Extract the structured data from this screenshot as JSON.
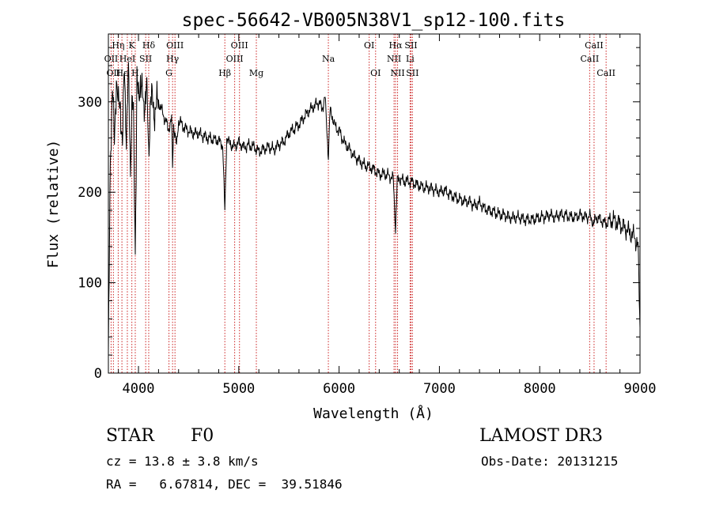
{
  "chart_data": {
    "type": "line",
    "title": "spec-56642-VB005N38V1_sp12-100.fits",
    "xlabel": "Wavelength (Å)",
    "ylabel": "Flux (relative)",
    "xlim": [
      3700,
      9000
    ],
    "ylim": [
      0,
      375
    ],
    "x_ticks": [
      4000,
      5000,
      6000,
      7000,
      8000,
      9000
    ],
    "y_ticks": [
      0,
      100,
      200,
      300
    ],
    "x_minor_step": 200,
    "y_minor_step": 20,
    "line_color": "#000000",
    "marker_color": "#cc2222",
    "series": [
      {
        "name": "flux",
        "x": [
          3700,
          3720,
          3740,
          3760,
          3780,
          3800,
          3820,
          3840,
          3860,
          3880,
          3900,
          3920,
          3935,
          3950,
          3968,
          3985,
          4000,
          4020,
          4050,
          4080,
          4102,
          4120,
          4150,
          4200,
          4250,
          4300,
          4330,
          4340,
          4350,
          4380,
          4400,
          4450,
          4500,
          4550,
          4600,
          4650,
          4700,
          4750,
          4800,
          4840,
          4861,
          4880,
          4900,
          4950,
          5000,
          5050,
          5100,
          5150,
          5200,
          5250,
          5300,
          5350,
          5400,
          5450,
          5500,
          5550,
          5600,
          5650,
          5700,
          5750,
          5800,
          5830,
          5860,
          5893,
          5910,
          5930,
          5960,
          6000,
          6050,
          6100,
          6150,
          6200,
          6250,
          6300,
          6350,
          6400,
          6450,
          6500,
          6540,
          6563,
          6580,
          6600,
          6650,
          6700,
          6750,
          6800,
          6850,
          6900,
          6950,
          7000,
          7050,
          7100,
          7150,
          7200,
          7250,
          7300,
          7350,
          7400,
          7450,
          7500,
          7550,
          7600,
          7650,
          7700,
          7750,
          7800,
          7850,
          7900,
          7950,
          8000,
          8050,
          8100,
          8150,
          8200,
          8250,
          8300,
          8350,
          8400,
          8450,
          8500,
          8542,
          8560,
          8600,
          8662,
          8700,
          8750,
          8800,
          8850,
          8900,
          8950,
          8980,
          9000
        ],
        "y": [
          10,
          240,
          320,
          250,
          330,
          290,
          300,
          250,
          340,
          260,
          330,
          230,
          300,
          280,
          140,
          320,
          300,
          330,
          290,
          320,
          240,
          310,
          290,
          300,
          285,
          270,
          280,
          230,
          275,
          250,
          280,
          272,
          268,
          265,
          265,
          262,
          260,
          258,
          257,
          252,
          178,
          262,
          255,
          250,
          255,
          250,
          252,
          250,
          245,
          248,
          250,
          247,
          253,
          256,
          265,
          270,
          275,
          283,
          290,
          295,
          300,
          292,
          305,
          240,
          290,
          285,
          272,
          268,
          255,
          248,
          240,
          235,
          230,
          228,
          225,
          220,
          220,
          218,
          215,
          160,
          212,
          215,
          212,
          212,
          210,
          207,
          205,
          205,
          203,
          200,
          202,
          198,
          195,
          192,
          190,
          190,
          185,
          188,
          182,
          180,
          178,
          175,
          175,
          172,
          172,
          172,
          170,
          170,
          170,
          172,
          173,
          175,
          172,
          175,
          175,
          173,
          172,
          175,
          173,
          173,
          165,
          172,
          170,
          165,
          170,
          168,
          165,
          160,
          155,
          150,
          140,
          50
        ]
      }
    ],
    "line_markers": [
      {
        "wavelength": 3727,
        "label": "OII",
        "row": 2
      },
      {
        "wavelength": 3750,
        "label": "OII",
        "row": 3
      },
      {
        "wavelength": 3798,
        "label": "Hη",
        "row": 1
      },
      {
        "wavelength": 3835,
        "label": "Hε",
        "row": 3
      },
      {
        "wavelength": 3889,
        "label": "HeI",
        "row": 2
      },
      {
        "wavelength": 3934,
        "label": "K",
        "row": 1
      },
      {
        "wavelength": 3968,
        "label": "H",
        "row": 3
      },
      {
        "wavelength": 4072,
        "label": "SII",
        "row": 2
      },
      {
        "wavelength": 4102,
        "label": "Hδ",
        "row": 1
      },
      {
        "wavelength": 4304,
        "label": "G",
        "row": 3
      },
      {
        "wavelength": 4340,
        "label": "Hγ",
        "row": 2
      },
      {
        "wavelength": 4364,
        "label": "OIII",
        "row": 1
      },
      {
        "wavelength": 4861,
        "label": "Hβ",
        "row": 3
      },
      {
        "wavelength": 4959,
        "label": "OIII",
        "row": 2
      },
      {
        "wavelength": 5007,
        "label": "OIII",
        "row": 1
      },
      {
        "wavelength": 5175,
        "label": "Mg",
        "row": 3
      },
      {
        "wavelength": 5893,
        "label": "Na",
        "row": 2
      },
      {
        "wavelength": 6300,
        "label": "OI",
        "row": 1
      },
      {
        "wavelength": 6364,
        "label": "OI",
        "row": 3
      },
      {
        "wavelength": 6548,
        "label": "NII",
        "row": 2
      },
      {
        "wavelength": 6563,
        "label": "Hα",
        "row": 1
      },
      {
        "wavelength": 6583,
        "label": "NII",
        "row": 3
      },
      {
        "wavelength": 6708,
        "label": "Li",
        "row": 2
      },
      {
        "wavelength": 6717,
        "label": "SII",
        "row": 1
      },
      {
        "wavelength": 6731,
        "label": "SII",
        "row": 3
      },
      {
        "wavelength": 8498,
        "label": "CaII",
        "row": 2
      },
      {
        "wavelength": 8542,
        "label": "CaII",
        "row": 1
      },
      {
        "wavelength": 8662,
        "label": "CaII",
        "row": 3
      }
    ]
  },
  "info": {
    "object_class": "STAR",
    "subclass": "F0",
    "survey": "LAMOST DR3",
    "redshift": "cz = 13.8 ± 3.8 km/s",
    "obs_date": "Obs-Date: 20131215",
    "coords": "RA =   6.67814, DEC =  39.51846"
  }
}
